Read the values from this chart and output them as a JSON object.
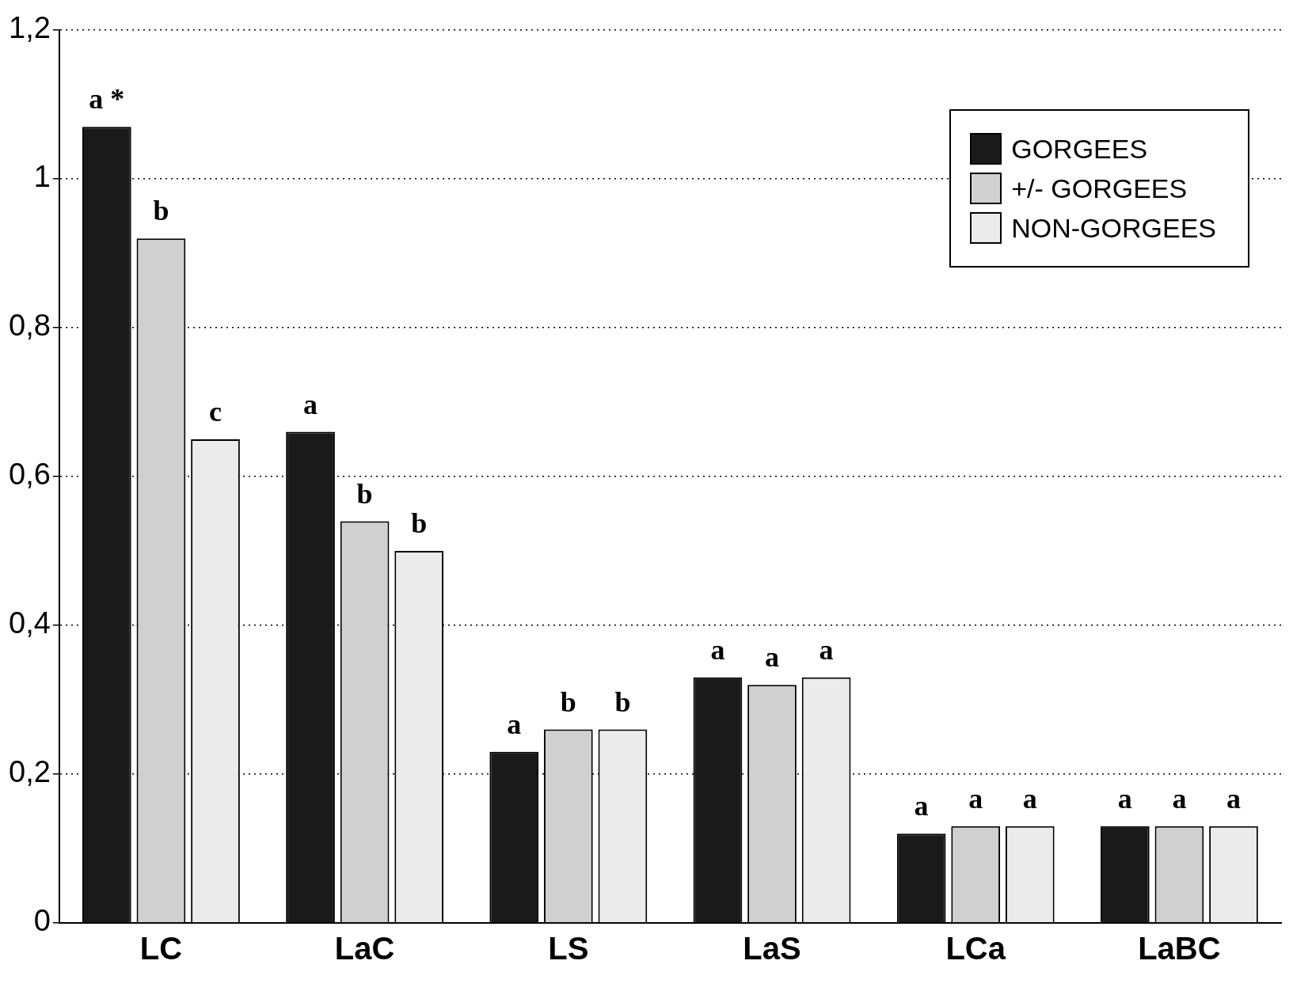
{
  "chart_data": {
    "type": "bar",
    "categories": [
      "LC",
      "LaC",
      "LS",
      "LaS",
      "LCa",
      "LaBC"
    ],
    "series": [
      {
        "name": "GORGEES",
        "color": "#1a1a1a",
        "values": [
          1.07,
          0.66,
          0.23,
          0.33,
          0.12,
          0.13
        ]
      },
      {
        "name": "+/- GORGEES",
        "color": "#d0d0d0",
        "values": [
          0.92,
          0.54,
          0.26,
          0.32,
          0.13,
          0.13
        ]
      },
      {
        "name": "NON-GORGEES",
        "color": "#ebebeb",
        "values": [
          0.65,
          0.5,
          0.26,
          0.33,
          0.13,
          0.13
        ]
      }
    ],
    "ylim": [
      0,
      1.2
    ],
    "yticks": [
      {
        "value": 0,
        "label": "0"
      },
      {
        "value": 0.2,
        "label": "0,2"
      },
      {
        "value": 0.4,
        "label": "0,4"
      },
      {
        "value": 0.6,
        "label": "0,6"
      },
      {
        "value": 0.8,
        "label": "0,8"
      },
      {
        "value": 1,
        "label": "1"
      },
      {
        "value": 1.2,
        "label": "1,2"
      }
    ],
    "grid": "y",
    "line_style": "dotted",
    "legend": "top right",
    "annotations": [
      "a *",
      "b",
      "c",
      "a",
      "b",
      "b",
      "a",
      "b",
      "b",
      "a",
      "a",
      "a",
      "a",
      "a",
      "a",
      "a",
      "a",
      "a"
    ]
  }
}
